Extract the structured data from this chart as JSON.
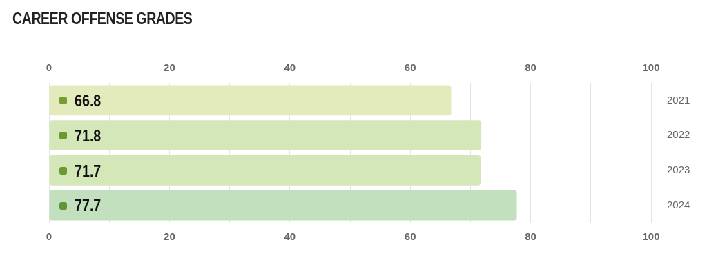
{
  "chart_data": {
    "type": "bar",
    "orientation": "horizontal",
    "title": "CAREER OFFENSE GRADES",
    "categories": [
      "2021",
      "2022",
      "2023",
      "2024"
    ],
    "values": [
      66.8,
      71.8,
      71.7,
      77.7
    ],
    "colors": [
      "#e3ebbd",
      "#d3e7b9",
      "#d3e7b9",
      "#c2e0bd"
    ],
    "xlim": [
      0,
      100
    ],
    "xticks": [
      0,
      {
        "value": 10,
        "label": null
      },
      20,
      {
        "value": 30,
        "label": null
      },
      40,
      {
        "value": 50,
        "label": null
      },
      60,
      {
        "value": 70,
        "label": null
      },
      80,
      {
        "value": 90,
        "label": null
      },
      100
    ],
    "x2lim": [
      0,
      100
    ],
    "x2ticks": [
      0,
      20,
      40,
      60,
      80,
      100
    ],
    "grid": "x",
    "data_labels": true
  }
}
